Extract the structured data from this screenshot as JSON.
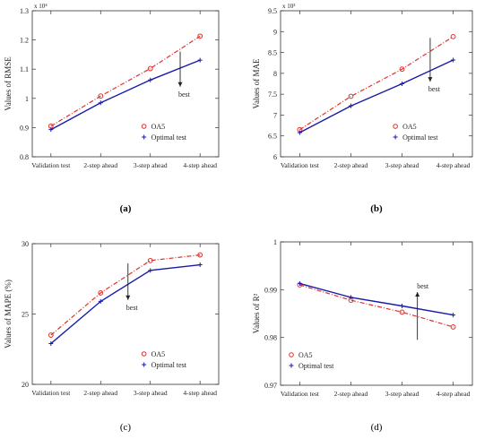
{
  "colors": {
    "oa5": "#e0302c",
    "optimal": "#1a1aa8",
    "axis": "#333333",
    "grid": "#dddddd"
  },
  "chart_data": [
    {
      "type": "line",
      "panel_label": "(a)",
      "ylabel": "Values of RMSE",
      "exponent_label": "x 10⁴",
      "categories": [
        "Validation test",
        "2-step ahead",
        "3-step ahead",
        "4-step ahead"
      ],
      "ylim": [
        0.8,
        1.3
      ],
      "yticks": [
        0.8,
        0.9,
        1.0,
        1.1,
        1.2,
        1.3
      ],
      "ytick_labels": [
        "0.8",
        "0.9",
        "1",
        "1.1",
        "1.2",
        "1.3"
      ],
      "series": [
        {
          "name": "OA5",
          "values": [
            0.905,
            1.008,
            1.102,
            1.213
          ],
          "style": "dashdot",
          "marker": "circle",
          "color": "#e0302c"
        },
        {
          "name": "Optimal test",
          "values": [
            0.893,
            0.985,
            1.063,
            1.131
          ],
          "style": "solid",
          "marker": "plus",
          "color": "#1a1aa8"
        }
      ],
      "annotation": {
        "text": "best",
        "x": 2.6,
        "arrow_from": 1.16,
        "arrow_to": 1.04,
        "direction": "down"
      },
      "legend_position": "lower-right"
    },
    {
      "type": "line",
      "panel_label": "(b)",
      "ylabel": "Values of MAE",
      "exponent_label": "x 10³",
      "categories": [
        "Validation test",
        "2-step ahead",
        "3-step ahead",
        "4-step ahead"
      ],
      "ylim": [
        6,
        9.5
      ],
      "yticks": [
        6,
        6.5,
        7,
        7.5,
        8,
        8.5,
        9,
        9.5
      ],
      "ytick_labels": [
        "6",
        "6.5",
        "7",
        "7.5",
        "8",
        "8.5",
        "9",
        "9.5"
      ],
      "series": [
        {
          "name": "OA5",
          "values": [
            6.65,
            7.45,
            8.1,
            8.88
          ],
          "style": "dashdot",
          "marker": "circle",
          "color": "#e0302c"
        },
        {
          "name": "Optimal test",
          "values": [
            6.58,
            7.22,
            7.75,
            8.32
          ],
          "style": "solid",
          "marker": "plus",
          "color": "#1a1aa8"
        }
      ],
      "annotation": {
        "text": "best",
        "x": 2.55,
        "arrow_from": 8.85,
        "arrow_to": 7.8,
        "direction": "down"
      },
      "legend_position": "lower-right"
    },
    {
      "type": "line",
      "panel_label": "(c)",
      "ylabel": "Values of MAPE (%)",
      "categories": [
        "Validation test",
        "2-step ahead",
        "3-step ahead",
        "4-step ahead"
      ],
      "ylim": [
        20,
        30
      ],
      "yticks": [
        20,
        25,
        30
      ],
      "ytick_labels": [
        "20",
        "25",
        "30"
      ],
      "series": [
        {
          "name": "OA5",
          "values": [
            23.5,
            26.5,
            28.8,
            29.2
          ],
          "style": "dashdot",
          "marker": "circle",
          "color": "#e0302c"
        },
        {
          "name": "Optimal test",
          "values": [
            22.9,
            25.9,
            28.1,
            28.5
          ],
          "style": "solid",
          "marker": "plus",
          "color": "#1a1aa8"
        }
      ],
      "annotation": {
        "text": "best",
        "x": 1.55,
        "arrow_from": 28.6,
        "arrow_to": 26.0,
        "direction": "down"
      },
      "legend_position": "lower-right"
    },
    {
      "type": "line",
      "panel_label": "(d)",
      "ylabel": "Values of R²",
      "categories": [
        "Validation test",
        "2-step ahead",
        "3-step ahead",
        "4-step ahead"
      ],
      "ylim": [
        0.97,
        1.0
      ],
      "yticks": [
        0.97,
        0.98,
        0.99,
        1.0
      ],
      "ytick_labels": [
        "0.97",
        "0.98",
        "0.99",
        "1"
      ],
      "series": [
        {
          "name": "OA5",
          "values": [
            0.991,
            0.9878,
            0.9853,
            0.9822
          ],
          "style": "dashdot",
          "marker": "circle",
          "color": "#e0302c"
        },
        {
          "name": "Optimal test",
          "values": [
            0.9913,
            0.9884,
            0.9866,
            0.9847
          ],
          "style": "solid",
          "marker": "plus",
          "color": "#1a1aa8"
        }
      ],
      "annotation": {
        "text": "best",
        "x": 2.3,
        "arrow_from": 0.9795,
        "arrow_to": 0.9895,
        "direction": "up"
      },
      "legend_position": "lower-left"
    }
  ]
}
